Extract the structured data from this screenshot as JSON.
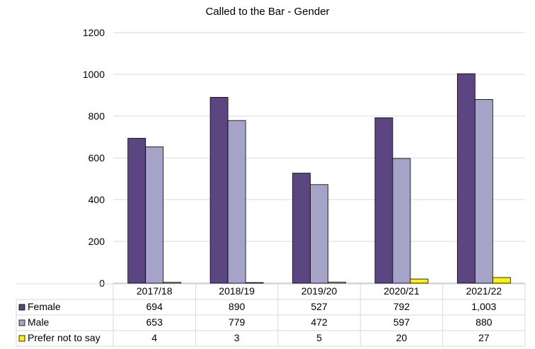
{
  "chart_data": {
    "type": "bar",
    "title": "Called to the Bar - Gender",
    "categories": [
      "2017/18",
      "2018/19",
      "2019/20",
      "2020/21",
      "2021/22"
    ],
    "series": [
      {
        "name": "Female",
        "color": "#5b4682",
        "values": [
          694,
          890,
          527,
          792,
          1003
        ],
        "labels": [
          "694",
          "890",
          "527",
          "792",
          "1,003"
        ]
      },
      {
        "name": "Male",
        "color": "#a6a3c8",
        "values": [
          653,
          779,
          472,
          597,
          880
        ],
        "labels": [
          "653",
          "779",
          "472",
          "597",
          "880"
        ]
      },
      {
        "name": "Prefer not to say",
        "color": "#fff200",
        "values": [
          4,
          3,
          5,
          20,
          27
        ],
        "labels": [
          "4",
          "3",
          "5",
          "20",
          "27"
        ]
      }
    ],
    "ylim": [
      0,
      1200
    ],
    "yticks": [
      0,
      200,
      400,
      600,
      800,
      1000,
      1200
    ],
    "grid": true,
    "legend": "data-table-left"
  }
}
